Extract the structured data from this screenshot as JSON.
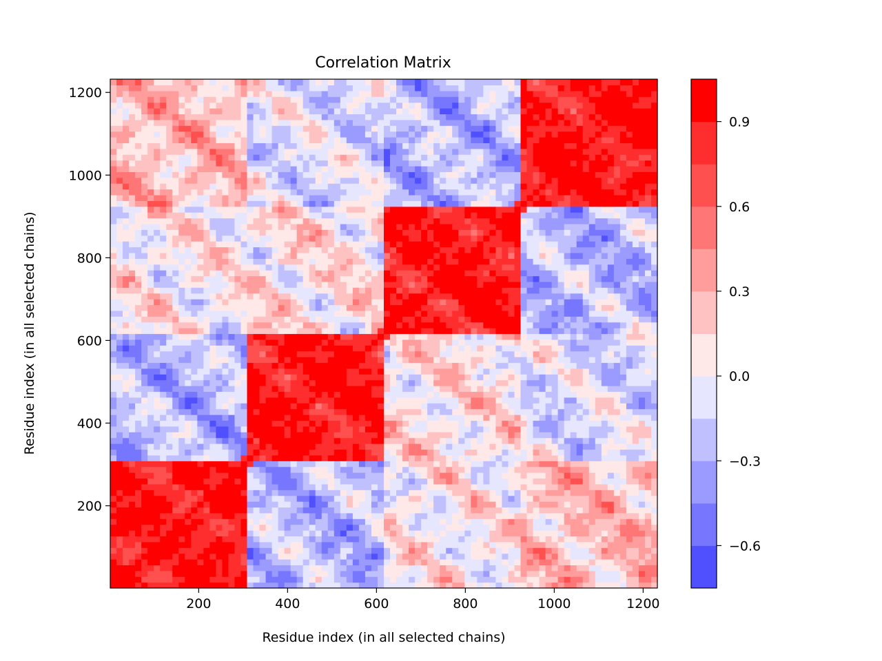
{
  "chart_data": {
    "type": "heatmap",
    "title": "Correlation Matrix",
    "xlabel": "Residue index (in all selected chains)",
    "ylabel": "Residue index (in all selected chains)",
    "xlim": [
      1,
      1232
    ],
    "ylim": [
      1,
      1232
    ],
    "x_ticks": [
      200,
      400,
      600,
      800,
      1000,
      1200
    ],
    "y_ticks": [
      200,
      400,
      600,
      800,
      1000,
      1200
    ],
    "x_tick_labels": [
      "200",
      "400",
      "600",
      "800",
      "1000",
      "1200"
    ],
    "y_tick_labels": [
      "200",
      "400",
      "600",
      "800",
      "1000",
      "1200"
    ],
    "block_boundaries": [
      1,
      309,
      617,
      925,
      1232
    ],
    "block_mean_correlation": [
      [
        0.9,
        -0.25,
        0.05,
        0.25
      ],
      [
        -0.25,
        0.9,
        0.1,
        -0.1
      ],
      [
        0.05,
        0.1,
        0.9,
        -0.25
      ],
      [
        0.25,
        -0.1,
        -0.25,
        0.9
      ]
    ],
    "diagonal_value": 1.0,
    "colorbar": {
      "min": -0.75,
      "max": 1.05,
      "levels": [
        -0.75,
        -0.6,
        -0.45,
        -0.3,
        -0.15,
        0.0,
        0.15,
        0.3,
        0.45,
        0.6,
        0.75,
        0.9,
        1.05
      ],
      "colors": [
        "#5050ff",
        "#7676ff",
        "#9a9aff",
        "#c0c0ff",
        "#e6e6ff",
        "#ffe8e8",
        "#ffc2c2",
        "#ff9c9c",
        "#ff7676",
        "#ff5050",
        "#ff2e2e",
        "#ff0000"
      ],
      "ticks": [
        -0.6,
        -0.3,
        0.0,
        0.3,
        0.6,
        0.9
      ],
      "tick_labels": [
        "−0.6",
        "−0.3",
        "0.0",
        "0.3",
        "0.6",
        "0.9"
      ]
    },
    "colormap": "bwr"
  }
}
